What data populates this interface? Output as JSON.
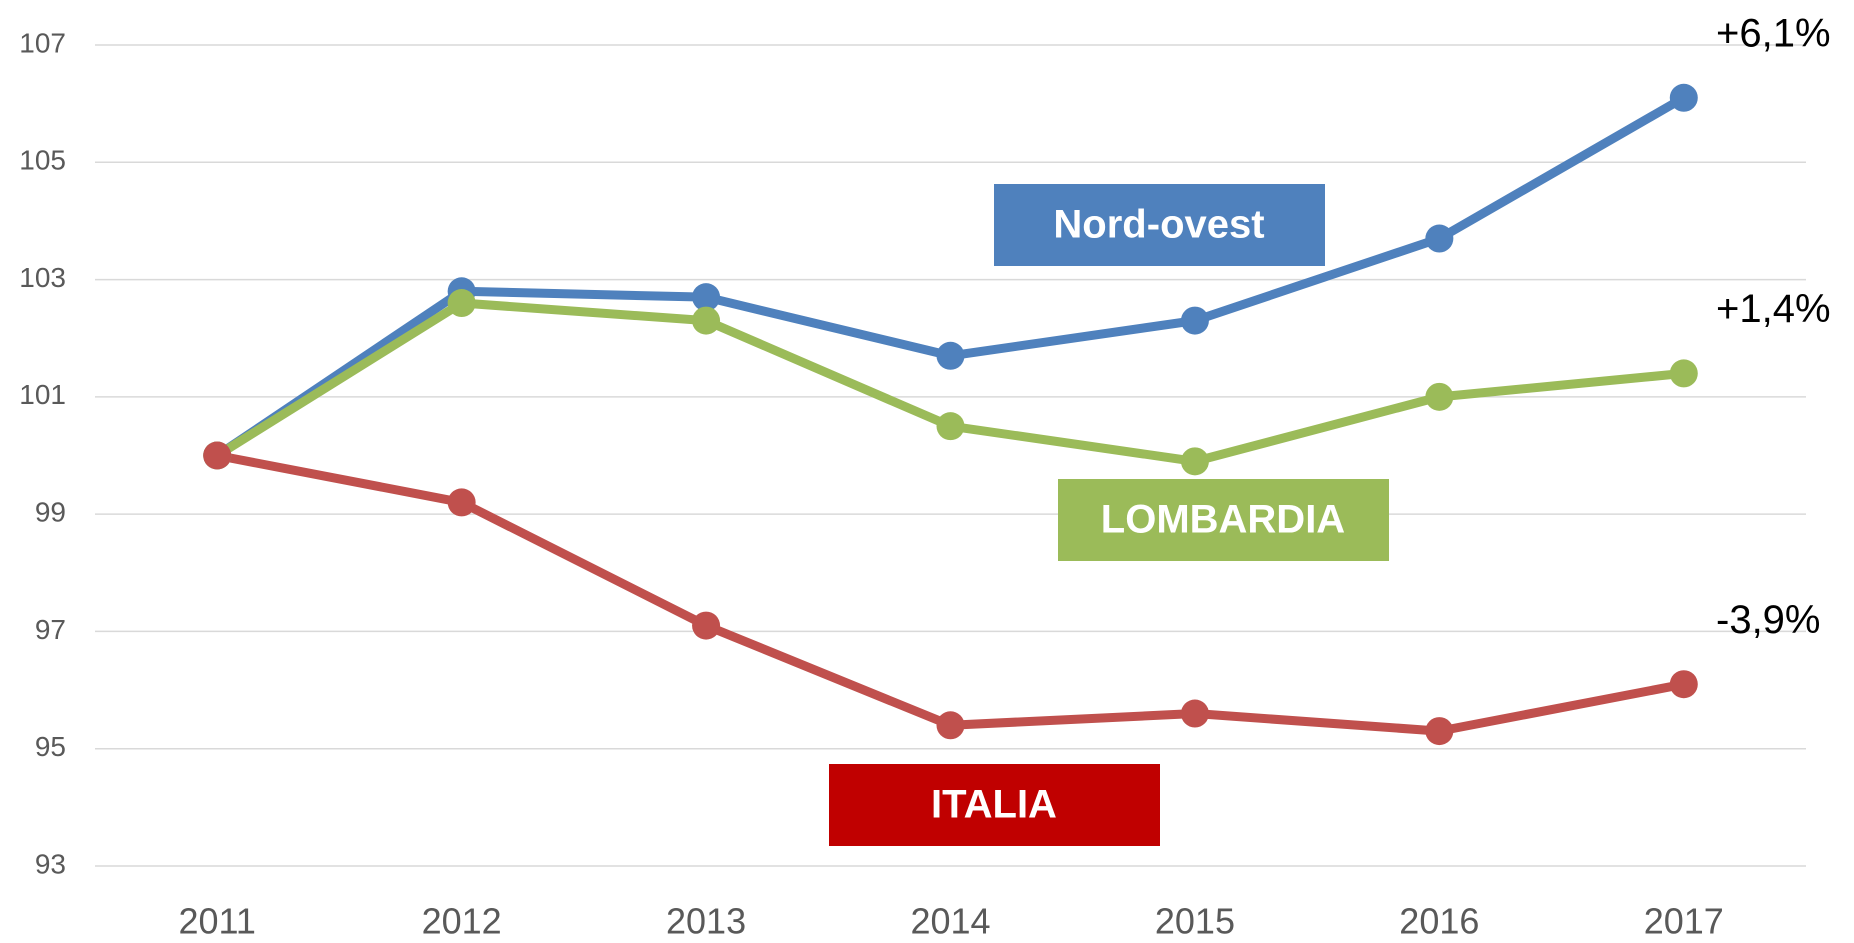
{
  "chart_data": {
    "type": "line",
    "categories": [
      "2011",
      "2012",
      "2013",
      "2014",
      "2015",
      "2016",
      "2017"
    ],
    "series": [
      {
        "name": "Nord-ovest",
        "color": "#4f81bd",
        "label_color": "#4f81bd",
        "values": [
          100,
          102.8,
          102.7,
          101.7,
          102.3,
          103.7,
          106.1
        ],
        "end_label": "+6,1%"
      },
      {
        "name": "LOMBARDIA",
        "color": "#9bbb59",
        "label_color": "#9bbb59",
        "values": [
          100,
          102.6,
          102.3,
          100.5,
          99.9,
          101.0,
          101.4
        ],
        "end_label": "+1,4%"
      },
      {
        "name": "ITALIA",
        "color": "#c0504d",
        "label_color": "#c00000",
        "values": [
          100,
          99.2,
          97.1,
          95.4,
          95.6,
          95.3,
          96.1
        ],
        "end_label": "-3,9%"
      }
    ],
    "ylim": [
      93,
      107
    ],
    "yticks": [
      93,
      95,
      97,
      99,
      101,
      103,
      105,
      107
    ],
    "grid": true
  }
}
